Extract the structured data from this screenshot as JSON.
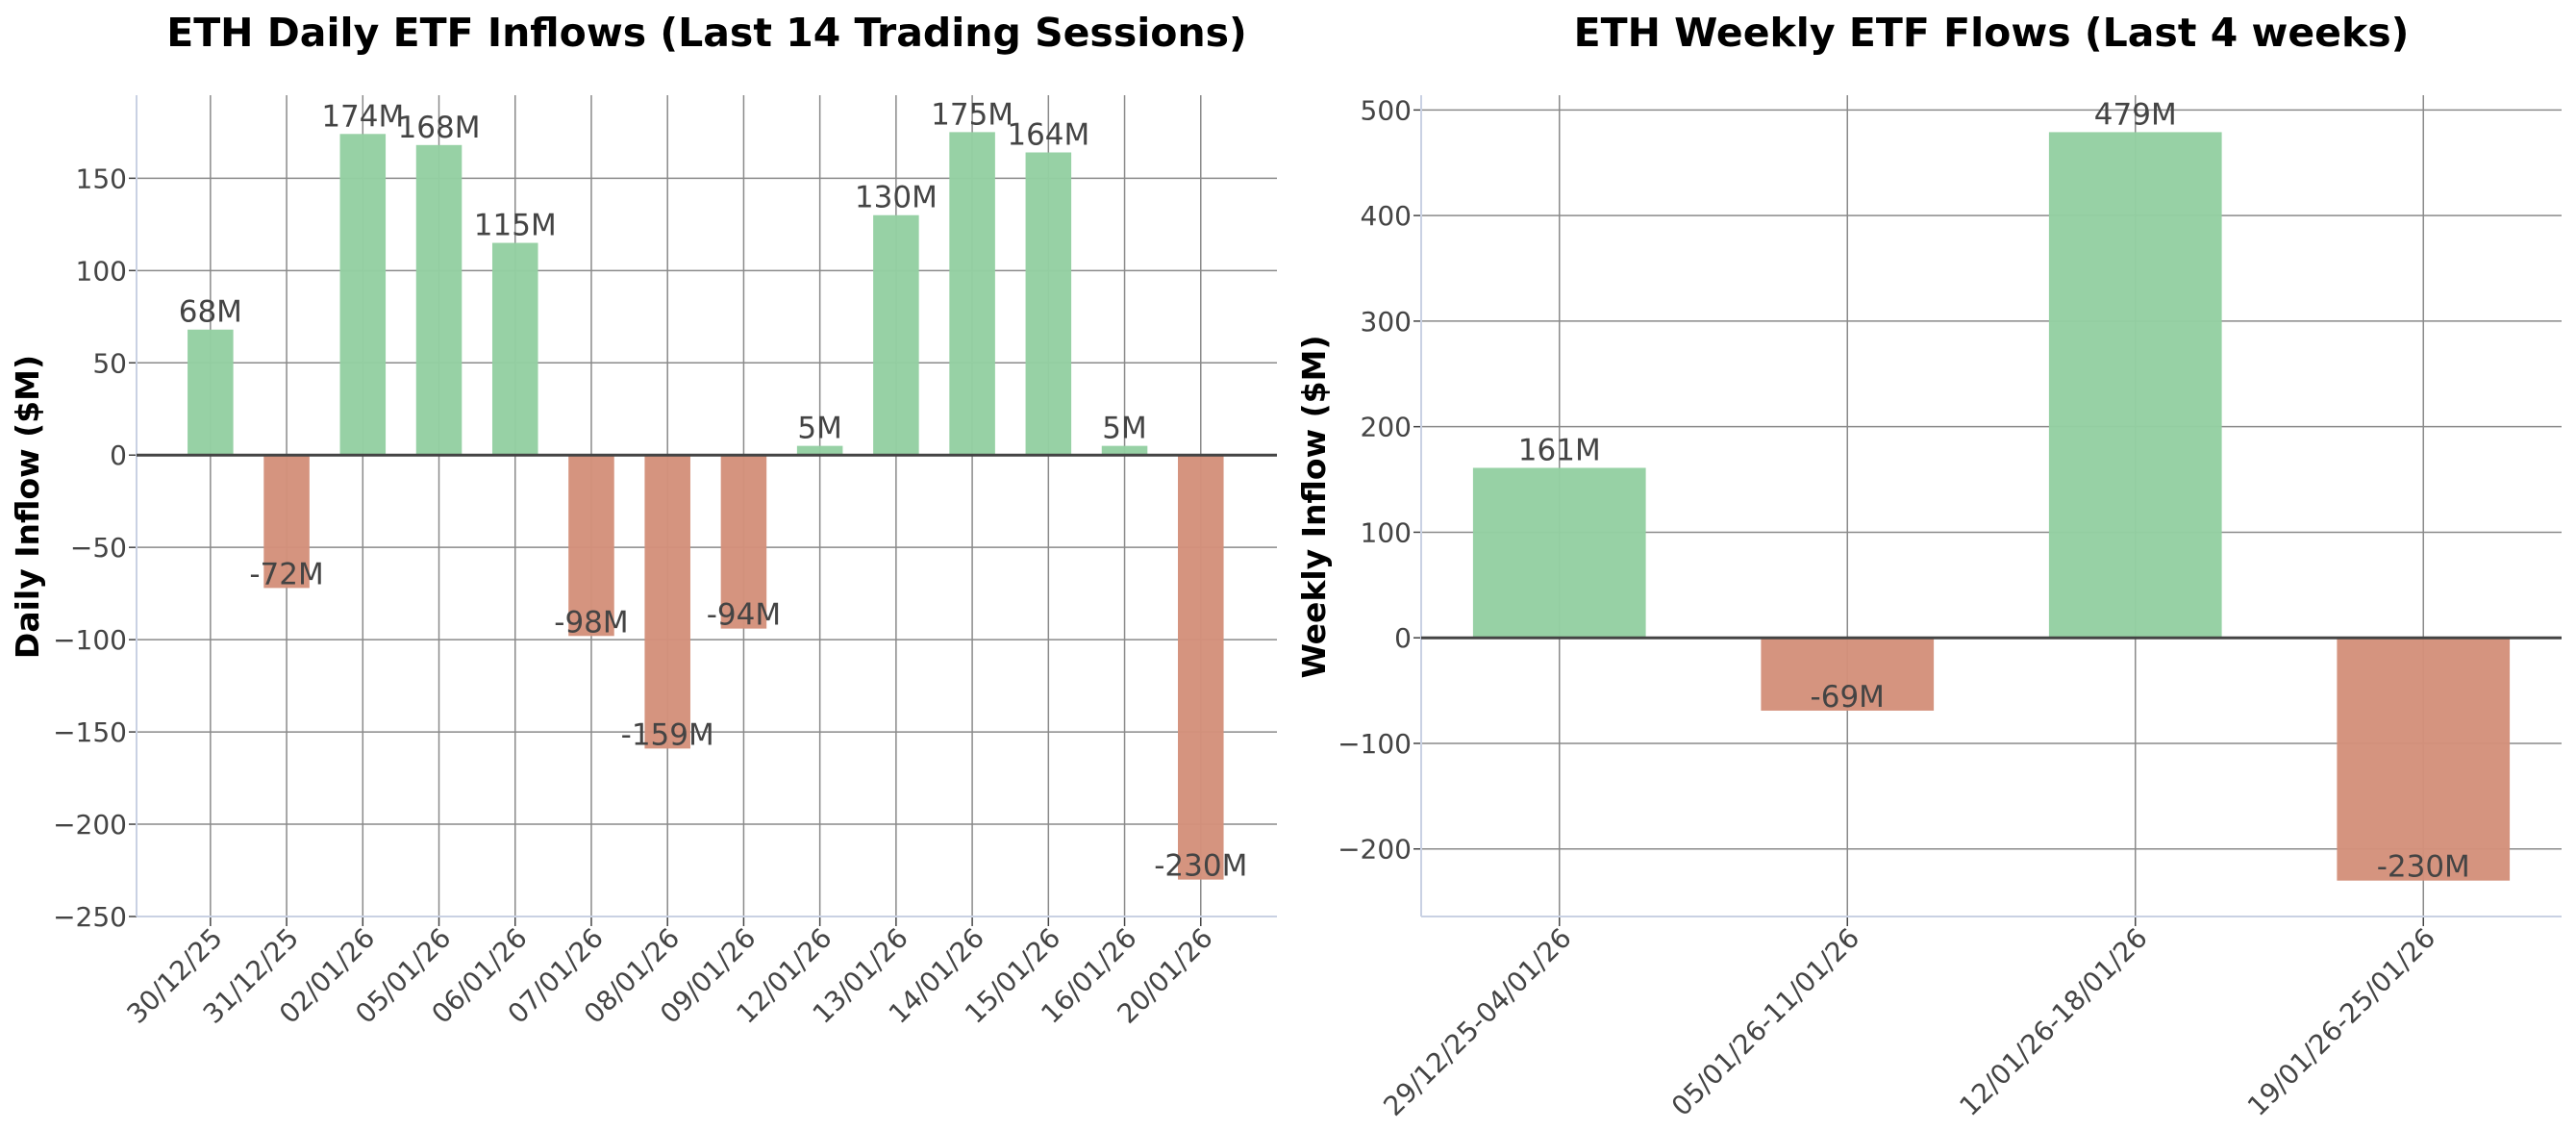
{
  "colors": {
    "title": "#13808f",
    "positive": "#94cfa2",
    "negative": "#d4917b",
    "grid": "#8a8a8a",
    "zero_line": "#444444",
    "spine": "#c9d1e3"
  },
  "chart_data": [
    {
      "type": "bar",
      "title": "ETH Daily ETF Inflows (Last 14 Trading Sessions)",
      "xlabel": "",
      "ylabel": "Daily Inflow ($M)",
      "categories": [
        "30/12/25",
        "31/12/25",
        "02/01/26",
        "05/01/26",
        "06/01/26",
        "07/01/26",
        "08/01/26",
        "09/01/26",
        "12/01/26",
        "13/01/26",
        "14/01/26",
        "15/01/26",
        "16/01/26",
        "20/01/26"
      ],
      "values": [
        68,
        -72,
        174,
        168,
        115,
        -98,
        -159,
        -94,
        5,
        130,
        175,
        164,
        5,
        -230
      ],
      "data_labels": [
        "68M",
        "-72M",
        "174M",
        "168M",
        "115M",
        "-98M",
        "-159M",
        "-94M",
        "5M",
        "130M",
        "175M",
        "164M",
        "5M",
        "-230M"
      ],
      "yticks": [
        -250,
        -200,
        -150,
        -100,
        -50,
        0,
        50,
        100,
        150
      ],
      "ytick_labels": [
        "−250",
        "−200",
        "−150",
        "−100",
        "−50",
        "0",
        "50",
        "100",
        "150"
      ],
      "ylim": [
        -250,
        195
      ],
      "grid": true,
      "legend": "none"
    },
    {
      "type": "bar",
      "title": "ETH Weekly ETF Flows (Last 4 weeks)",
      "xlabel": "",
      "ylabel": "Weekly Inflow ($M)",
      "categories": [
        "29/12/25-04/01/26",
        "05/01/26-11/01/26",
        "12/01/26-18/01/26",
        "19/01/26-25/01/26"
      ],
      "values": [
        161,
        -69,
        479,
        -230
      ],
      "data_labels": [
        "161M",
        "-69M",
        "479M",
        "-230M"
      ],
      "yticks": [
        -200,
        -100,
        0,
        100,
        200,
        300,
        400,
        500
      ],
      "ytick_labels": [
        "−200",
        "−100",
        "0",
        "100",
        "200",
        "300",
        "400",
        "500"
      ],
      "ylim": [
        -264,
        514
      ],
      "grid": true,
      "legend": "none"
    }
  ]
}
